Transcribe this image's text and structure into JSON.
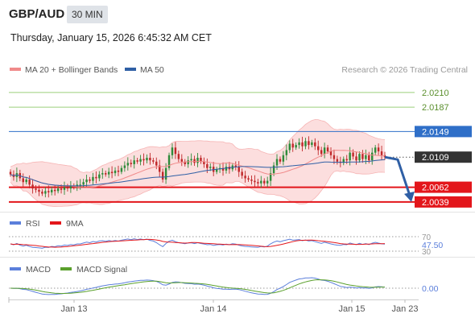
{
  "header": {
    "symbol": "GBP/AUD",
    "timeframe": "30 MIN",
    "datetime": "Thursday, January 15, 2026 6:45:32 AM CET"
  },
  "legend": {
    "ma20_label": "MA 20 + Bollinger Bands",
    "ma50_label": "MA 50",
    "credit": "Research © 2026 Trading Central"
  },
  "colors": {
    "bull": "#2e8b3a",
    "bear": "#c0282a",
    "ma20": "#f08a8a",
    "ma50": "#2f5fa5",
    "bands_fill": "#fcdede",
    "resistance": "#9bcf7a",
    "pivot": "#2f6fc8",
    "support": "#e3161b",
    "price_tag": "#333333",
    "arrow": "#2f5fa5",
    "rsi": "#5b7fdb",
    "rsi_ma": "#e3161b",
    "macd": "#5b7fdb",
    "macd_signal": "#5aa02c"
  },
  "chart_data": [
    {
      "type": "candlestick",
      "panel": "price",
      "y_range": [
        2.0025,
        2.0235
      ],
      "x_ticks": [
        "Jan 13",
        "Jan 14",
        "Jan 15",
        "Jan 23"
      ],
      "levels": [
        {
          "label": "2.0210",
          "value": 2.021,
          "kind": "resistance"
        },
        {
          "label": "2.0187",
          "value": 2.0187,
          "kind": "resistance"
        },
        {
          "label": "2.0149",
          "value": 2.0149,
          "kind": "pivot"
        },
        {
          "label": "2.0109",
          "value": 2.0109,
          "kind": "last"
        },
        {
          "label": "2.0062",
          "value": 2.0062,
          "kind": "support"
        },
        {
          "label": "2.0039",
          "value": 2.0039,
          "kind": "support"
        }
      ],
      "close_series": [
        2.0082,
        2.0078,
        2.0084,
        2.0076,
        2.007,
        2.0074,
        2.0066,
        2.006,
        2.0058,
        2.0055,
        2.0052,
        2.0056,
        2.0054,
        2.0058,
        2.0056,
        2.006,
        2.0058,
        2.0062,
        2.006,
        2.0064,
        2.0062,
        2.0066,
        2.0066,
        2.007,
        2.0074,
        2.0072,
        2.0078,
        2.0076,
        2.0082,
        2.0084,
        2.0082,
        2.0086,
        2.0084,
        2.0088,
        2.0086,
        2.0092,
        2.0096,
        2.01,
        2.0098,
        2.0104,
        2.0102,
        2.0106,
        2.0104,
        2.0108,
        2.0104,
        2.0102,
        2.0096,
        2.0086,
        2.0074,
        2.0092,
        2.0112,
        2.0124,
        2.0114,
        2.0106,
        2.0102,
        2.0098,
        2.0104,
        2.0106,
        2.01,
        2.0108,
        2.0102,
        2.0098,
        2.0092,
        2.0094,
        2.0086,
        2.009,
        2.0092,
        2.0088,
        2.0094,
        2.009,
        2.0096,
        2.0094,
        2.0086,
        2.008,
        2.0076,
        2.0074,
        2.0072,
        2.007,
        2.0068,
        2.0072,
        2.0068,
        2.0072,
        2.0084,
        2.0096,
        2.0106,
        2.0102,
        2.0112,
        2.012,
        2.013,
        2.0124,
        2.0128,
        2.0132,
        2.0126,
        2.0134,
        2.0128,
        2.0132,
        2.0126,
        2.012,
        2.0114,
        2.0124,
        2.0118,
        2.0112,
        2.0106,
        2.0102,
        2.01,
        2.0106,
        2.0104,
        2.0116,
        2.011,
        2.0104,
        2.0114,
        2.0106,
        2.0112,
        2.0104,
        2.0116,
        2.0124,
        2.0118,
        2.0112,
        2.0109
      ],
      "series": [
        {
          "name": "MA 20 + Bollinger Bands"
        },
        {
          "name": "MA 50"
        }
      ]
    },
    {
      "type": "line",
      "panel": "rsi",
      "legend": [
        "RSI",
        "9MA"
      ],
      "ticks": [
        {
          "label": "70",
          "value": 70
        },
        {
          "label": "30",
          "value": 30
        }
      ],
      "last_value_label": "47.50",
      "last_value": 47.5
    },
    {
      "type": "line",
      "panel": "macd",
      "legend": [
        "MACD",
        "MACD Signal"
      ],
      "zero_label": "0.00",
      "zero_value": 0
    }
  ]
}
